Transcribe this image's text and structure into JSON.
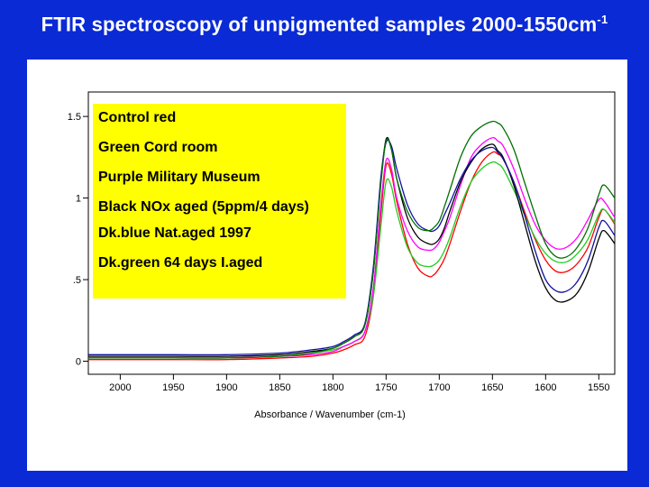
{
  "title": {
    "main": "FTIR spectroscopy of unpigmented samples 2000-1550cm",
    "sup": "-1"
  },
  "legend": [
    {
      "label": "Control red",
      "color": "#ff0000"
    },
    {
      "label": "Green  Cord room",
      "color": "#00a000"
    },
    {
      "label": "Purple Military Museum",
      "color": "#ff00ff"
    },
    {
      "label": "Black NOx aged (5ppm/4 days)",
      "color": "#000000"
    },
    {
      "label": "Dk.blue Nat.aged 1997",
      "color": "#1010a0"
    },
    {
      "label": "Dk.green 64 days I.aged",
      "color": "#006400"
    }
  ],
  "chart_data": {
    "type": "line",
    "xlabel": "Absorbance / Wavenumber (cm-1)",
    "ylabel": "",
    "xlim": [
      2030,
      1535
    ],
    "ylim": [
      -0.08,
      1.65
    ],
    "xticks": [
      2000,
      1950,
      1900,
      1850,
      1800,
      1750,
      1700,
      1650,
      1600,
      1550
    ],
    "xtick_labels": [
      "2000",
      "1950",
      "1900",
      "1850",
      "1800",
      "1750",
      "1700",
      "1650",
      "1600",
      "1550"
    ],
    "yticks": [
      0,
      0.5,
      1,
      1.5
    ],
    "ytick_labels": [
      "0",
      ".5",
      "1",
      "1.5"
    ],
    "x": [
      2030,
      2000,
      1950,
      1900,
      1850,
      1820,
      1800,
      1790,
      1780,
      1770,
      1762,
      1755,
      1750,
      1745,
      1740,
      1730,
      1720,
      1710,
      1705,
      1700,
      1695,
      1690,
      1680,
      1670,
      1660,
      1650,
      1645,
      1640,
      1630,
      1620,
      1610,
      1600,
      1590,
      1580,
      1570,
      1560,
      1550,
      1545,
      1535
    ],
    "series": [
      {
        "name": "Control red",
        "color": "#ff0000",
        "values": [
          0.01,
          0.01,
          0.01,
          0.01,
          0.02,
          0.03,
          0.05,
          0.07,
          0.1,
          0.15,
          0.4,
          0.9,
          1.2,
          1.15,
          0.98,
          0.72,
          0.57,
          0.52,
          0.53,
          0.57,
          0.63,
          0.72,
          0.92,
          1.1,
          1.22,
          1.28,
          1.27,
          1.24,
          1.1,
          0.92,
          0.75,
          0.62,
          0.55,
          0.55,
          0.6,
          0.7,
          0.88,
          0.93,
          0.84
        ]
      },
      {
        "name": "Green  Cord room",
        "color": "#22cc22",
        "values": [
          0.02,
          0.02,
          0.02,
          0.02,
          0.03,
          0.05,
          0.07,
          0.09,
          0.12,
          0.18,
          0.4,
          0.82,
          1.1,
          1.07,
          0.92,
          0.7,
          0.6,
          0.58,
          0.59,
          0.62,
          0.68,
          0.76,
          0.95,
          1.1,
          1.18,
          1.22,
          1.21,
          1.18,
          1.05,
          0.9,
          0.76,
          0.66,
          0.61,
          0.61,
          0.66,
          0.75,
          0.9,
          0.93,
          0.85
        ]
      },
      {
        "name": "Purple Military Museum",
        "color": "#ff00ff",
        "values": [
          0.02,
          0.02,
          0.02,
          0.02,
          0.03,
          0.04,
          0.06,
          0.09,
          0.12,
          0.18,
          0.45,
          0.95,
          1.23,
          1.18,
          1.0,
          0.8,
          0.7,
          0.68,
          0.69,
          0.73,
          0.8,
          0.88,
          1.08,
          1.25,
          1.33,
          1.37,
          1.35,
          1.32,
          1.18,
          1.0,
          0.84,
          0.74,
          0.69,
          0.7,
          0.76,
          0.87,
          0.99,
          0.98,
          0.88
        ]
      },
      {
        "name": "Black NOx aged (5ppm/4 days)",
        "color": "#000000",
        "values": [
          0.03,
          0.03,
          0.03,
          0.03,
          0.04,
          0.06,
          0.08,
          0.11,
          0.15,
          0.22,
          0.55,
          1.1,
          1.36,
          1.3,
          1.12,
          0.88,
          0.76,
          0.72,
          0.72,
          0.75,
          0.82,
          0.92,
          1.1,
          1.22,
          1.3,
          1.33,
          1.29,
          1.25,
          1.08,
          0.85,
          0.62,
          0.45,
          0.37,
          0.37,
          0.42,
          0.55,
          0.75,
          0.8,
          0.72
        ]
      },
      {
        "name": "Dk.blue Nat.aged 1997",
        "color": "#1010a0",
        "values": [
          0.04,
          0.04,
          0.04,
          0.04,
          0.05,
          0.07,
          0.09,
          0.12,
          0.16,
          0.23,
          0.58,
          1.12,
          1.34,
          1.32,
          1.18,
          0.96,
          0.84,
          0.8,
          0.8,
          0.83,
          0.9,
          0.97,
          1.12,
          1.23,
          1.29,
          1.31,
          1.28,
          1.24,
          1.1,
          0.9,
          0.68,
          0.5,
          0.43,
          0.43,
          0.49,
          0.62,
          0.82,
          0.86,
          0.77
        ]
      },
      {
        "name": "Dk.green 64 days I.aged",
        "color": "#007000",
        "values": [
          0.02,
          0.02,
          0.02,
          0.02,
          0.03,
          0.05,
          0.08,
          0.11,
          0.15,
          0.22,
          0.55,
          1.08,
          1.35,
          1.3,
          1.12,
          0.92,
          0.82,
          0.8,
          0.82,
          0.86,
          0.95,
          1.05,
          1.25,
          1.38,
          1.44,
          1.47,
          1.46,
          1.43,
          1.3,
          1.1,
          0.9,
          0.72,
          0.64,
          0.64,
          0.7,
          0.82,
          1.02,
          1.08,
          1.0
        ]
      }
    ]
  }
}
